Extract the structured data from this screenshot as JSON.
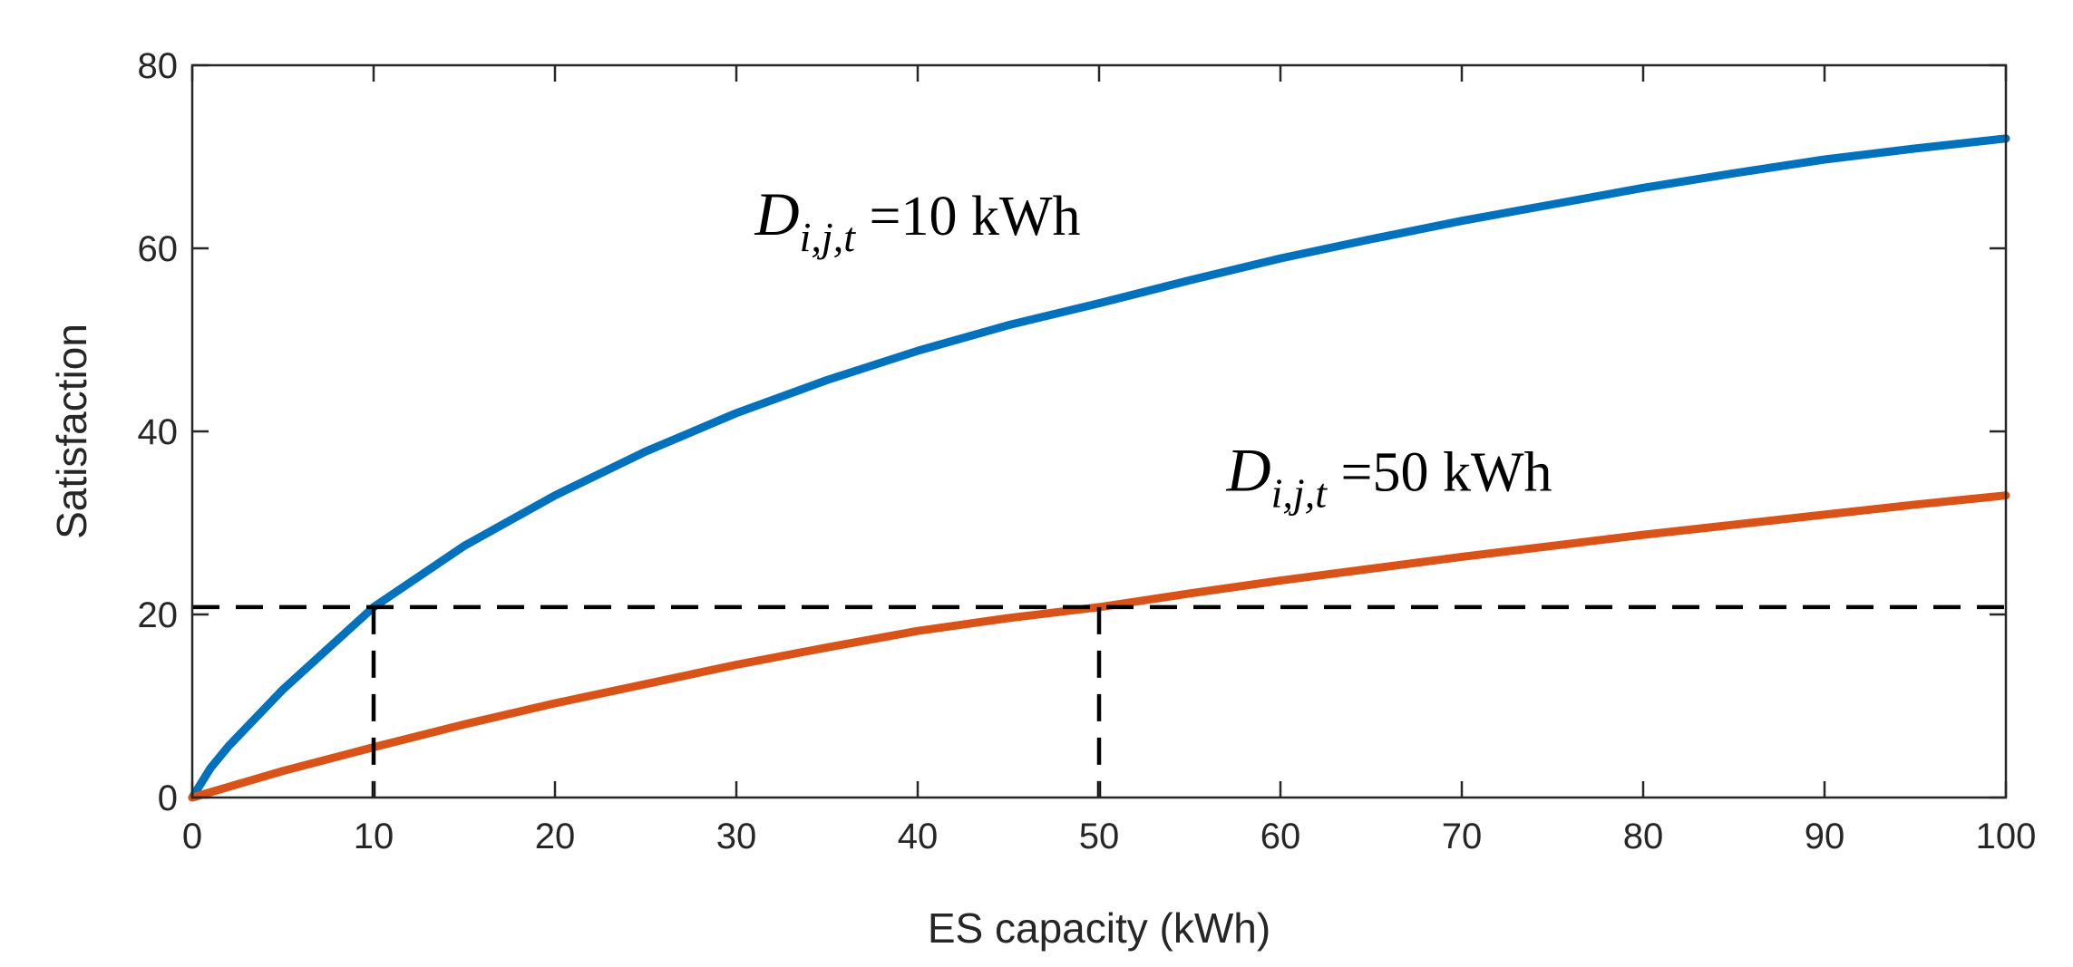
{
  "chart_data": {
    "type": "line",
    "title": "",
    "xlabel": "ES capacity (kWh)",
    "ylabel": "Satisfaction",
    "xlim": [
      0,
      100
    ],
    "ylim": [
      0,
      80
    ],
    "xticks": [
      0,
      10,
      20,
      30,
      40,
      50,
      60,
      70,
      80,
      90,
      100
    ],
    "yticks": [
      0,
      20,
      40,
      60,
      80
    ],
    "grid": false,
    "box": true,
    "series": [
      {
        "name": "D_{i,j,t} = 10 kWh",
        "color": "#0072BD",
        "x": [
          0,
          1,
          2,
          5,
          10,
          15,
          20,
          25,
          30,
          35,
          40,
          45,
          50,
          55,
          60,
          65,
          70,
          75,
          80,
          85,
          90,
          95,
          100
        ],
        "y": [
          0,
          3.2,
          5.6,
          11.8,
          20.8,
          27.5,
          33,
          37.8,
          42,
          45.6,
          48.8,
          51.6,
          54,
          56.5,
          58.9,
          61,
          63,
          64.8,
          66.6,
          68.2,
          69.7,
          70.9,
          72
        ]
      },
      {
        "name": "D_{i,j,t} = 50 kWh",
        "color": "#D95319",
        "x": [
          0,
          5,
          10,
          15,
          20,
          25,
          30,
          35,
          40,
          45,
          50,
          55,
          60,
          65,
          70,
          75,
          80,
          85,
          90,
          95,
          100
        ],
        "y": [
          0,
          2.9,
          5.5,
          8,
          10.3,
          12.4,
          14.5,
          16.4,
          18.2,
          19.6,
          20.8,
          22.3,
          23.7,
          25,
          26.3,
          27.5,
          28.7,
          29.8,
          30.9,
          32,
          33
        ]
      }
    ],
    "reference": {
      "y": 20.8,
      "x_markers": [
        10,
        50
      ],
      "color": "#000000",
      "style": "dashed"
    },
    "annotations": [
      {
        "symbol": "D",
        "subscript": "i,j,t",
        "text": " =10 kWh",
        "x": 40,
        "y": 61.5
      },
      {
        "symbol": "D",
        "subscript": "i,j,t",
        "text": " =50 kWh",
        "x": 66,
        "y": 33.5
      }
    ]
  }
}
